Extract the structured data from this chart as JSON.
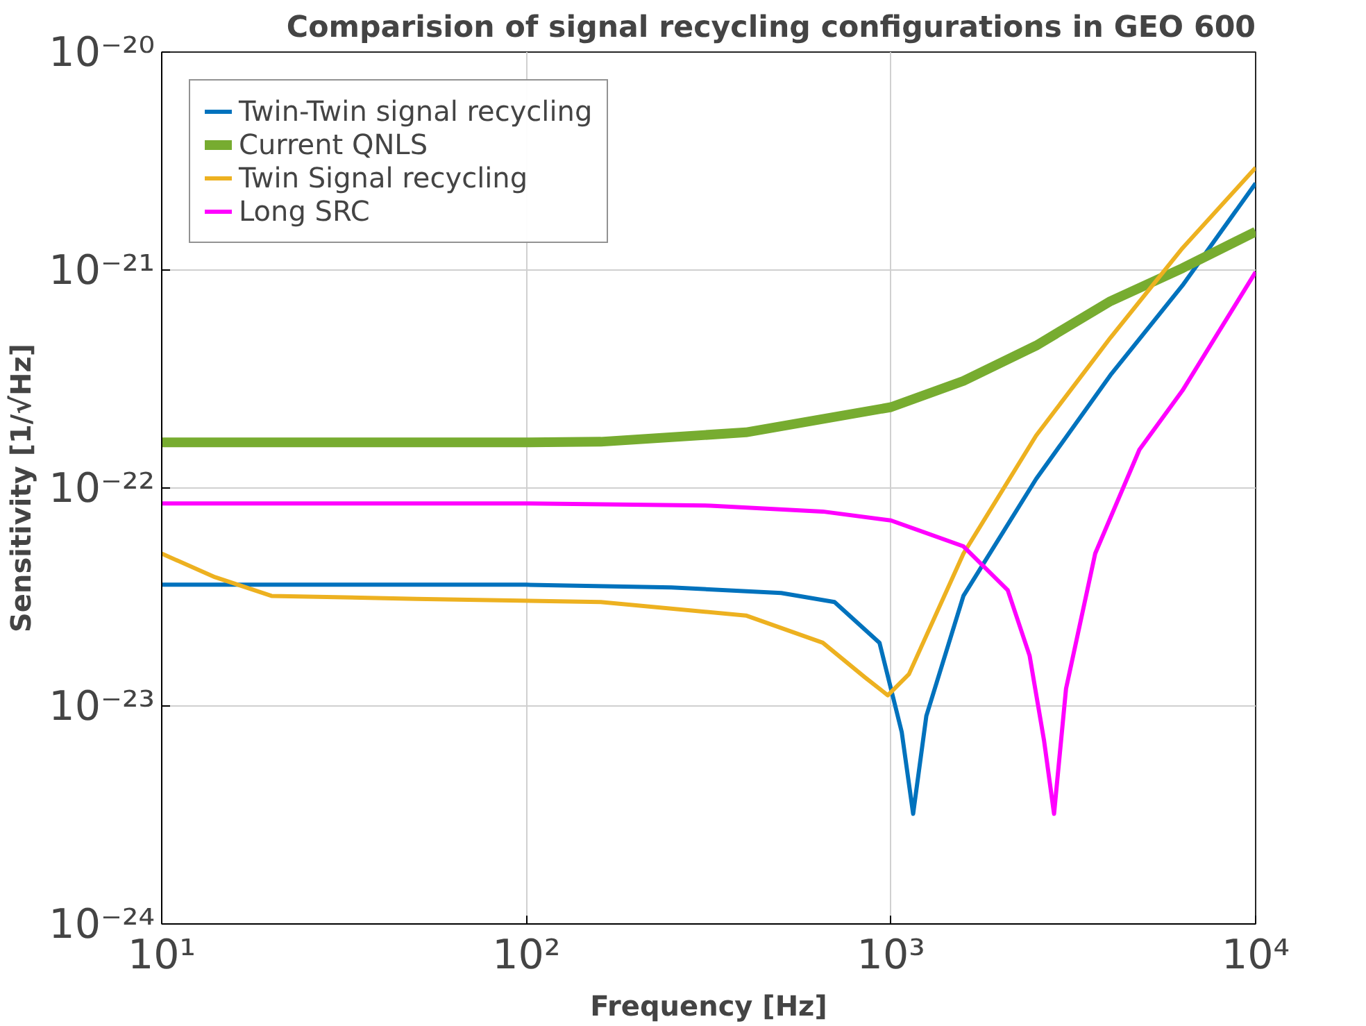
{
  "chart_data": {
    "type": "line",
    "title": "Comparision of signal recycling configurations in GEO 600",
    "xlabel": "Frequency [Hz]",
    "ylabel": "Sensitivity [1/√Hz]",
    "log": "xy",
    "grid": true,
    "legend": "top left",
    "xlim": [
      10,
      10000
    ],
    "ylim": [
      1e-24,
      1e-20
    ],
    "xticks": [
      {
        "value": 10,
        "label": "10¹"
      },
      {
        "value": 100,
        "label": "10²"
      },
      {
        "value": 1000,
        "label": "10³"
      },
      {
        "value": 10000,
        "label": "10⁴"
      }
    ],
    "yticks": [
      {
        "value": 1e-24,
        "label": "10⁻²⁴"
      },
      {
        "value": 1e-23,
        "label": "10⁻²³"
      },
      {
        "value": 1e-22,
        "label": "10⁻²²"
      },
      {
        "value": 1e-21,
        "label": "10⁻²¹"
      },
      {
        "value": 1e-20,
        "label": "10⁻²⁰"
      }
    ],
    "series": [
      {
        "name": "Twin-Twin signal recycling",
        "color": "#0072bd",
        "x": [
          10,
          100,
          250,
          500,
          700,
          930,
          1070,
          1150,
          1250,
          1580,
          2500,
          4000,
          6300,
          10000
        ],
        "values": [
          3.6e-23,
          3.6e-23,
          3.5e-23,
          3.3e-23,
          3e-23,
          1.95e-23,
          7.6e-24,
          3.2e-24,
          9e-24,
          3.2e-23,
          1.1e-22,
          3.3e-22,
          8.5e-22,
          2.5e-21
        ]
      },
      {
        "name": "Current QNLS",
        "color": "#77ac30",
        "x": [
          10,
          100,
          160,
          400,
          1000,
          1580,
          2500,
          4000,
          6300,
          10000
        ],
        "values": [
          1.62e-22,
          1.62e-22,
          1.63e-22,
          1.8e-22,
          2.35e-22,
          3.1e-22,
          4.5e-22,
          7.2e-22,
          1.02e-21,
          1.5e-21
        ]
      },
      {
        "name": "Twin Signal recycling",
        "color": "#edb120",
        "x": [
          10,
          14,
          20,
          50,
          160,
          400,
          650,
          850,
          980,
          1120,
          1580,
          2500,
          4000,
          6300,
          10000
        ],
        "values": [
          5e-23,
          3.9e-23,
          3.2e-23,
          3.1e-23,
          3e-23,
          2.6e-23,
          1.95e-23,
          1.35e-23,
          1.12e-23,
          1.4e-23,
          5e-23,
          1.74e-22,
          4.9e-22,
          1.26e-21,
          2.95e-21
        ]
      },
      {
        "name": "Long SRC",
        "color": "#ff00ff",
        "x": [
          10,
          100,
          320,
          650,
          1000,
          1580,
          2090,
          2400,
          2630,
          2800,
          3020,
          3630,
          4800,
          6300,
          10000
        ],
        "values": [
          8.5e-23,
          8.5e-23,
          8.3e-23,
          7.8e-23,
          7.1e-23,
          5.4e-23,
          3.4e-23,
          1.7e-23,
          6.9e-24,
          3.2e-24,
          1.2e-23,
          5e-23,
          1.5e-22,
          2.8e-22,
          9.8e-22
        ]
      }
    ]
  }
}
